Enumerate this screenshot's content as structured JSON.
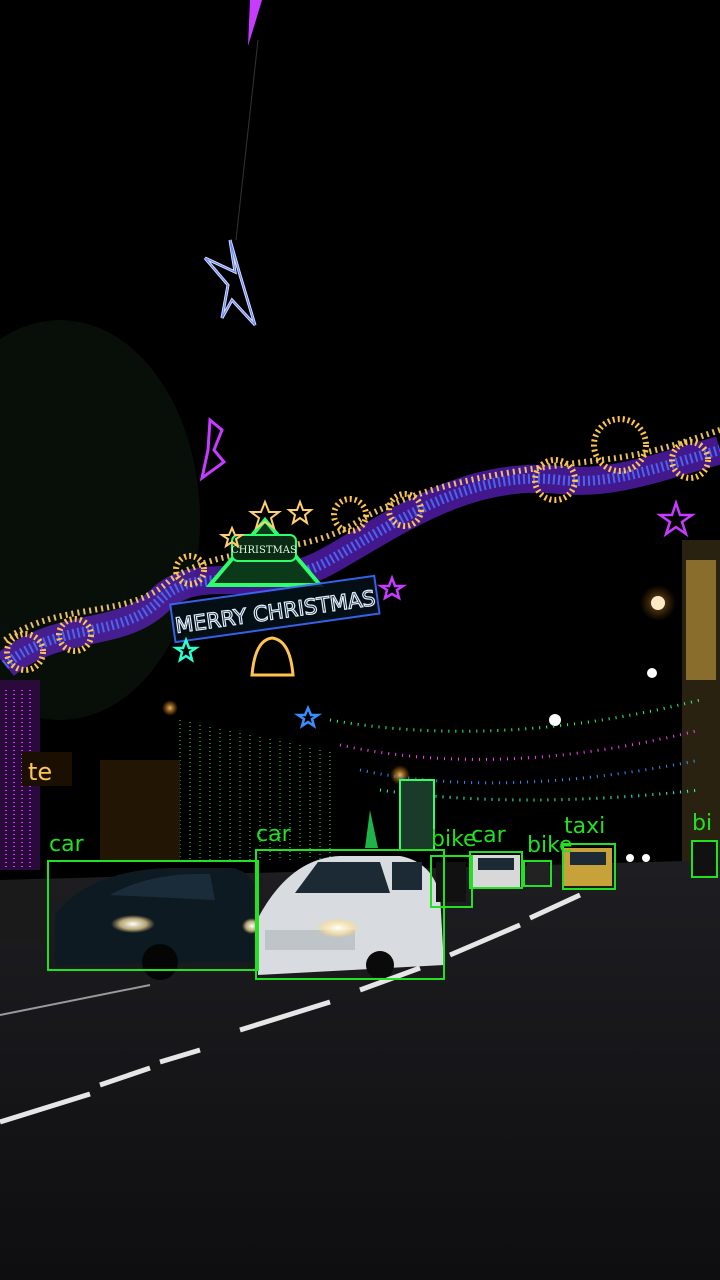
{
  "scene": {
    "description_hidden": false,
    "arch_sign": "MERRY CHRISTMAS",
    "arch_badge": "CHRISTMAS",
    "shop_sign": "te"
  },
  "colors": {
    "detection": "#22e022",
    "sky": "#000000",
    "road": "#141414"
  },
  "detections": [
    {
      "label": "car"
    },
    {
      "label": "car"
    },
    {
      "label": "bike"
    },
    {
      "label": "car"
    },
    {
      "label": "bike"
    },
    {
      "label": "taxi"
    },
    {
      "label": "bi"
    }
  ]
}
